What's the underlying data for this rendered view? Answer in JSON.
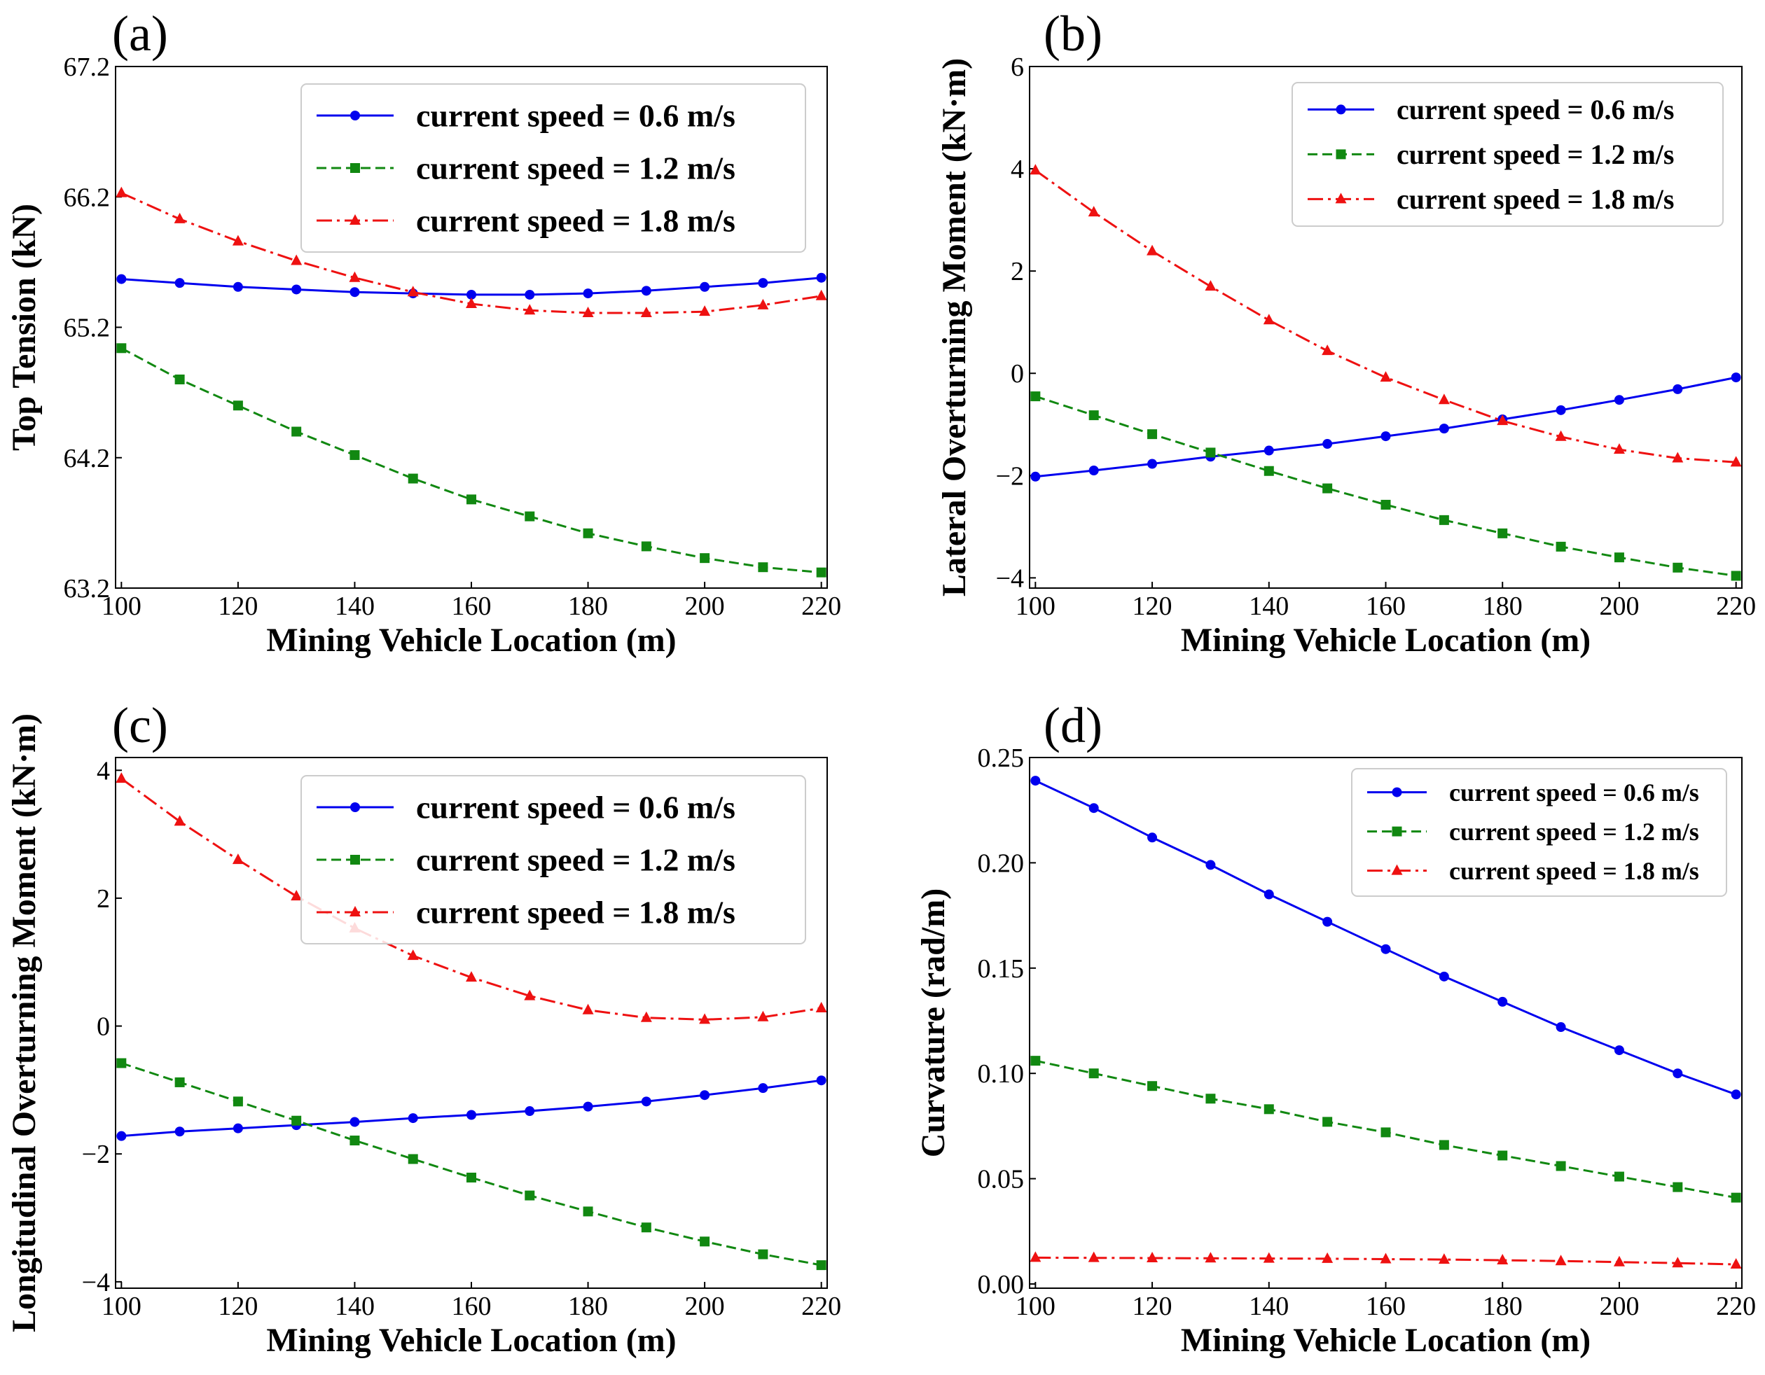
{
  "chart_data": [
    {
      "panel": "(a)",
      "type": "line",
      "title": "",
      "xlabel": "Mining Vehicle Location (m)",
      "ylabel": "Top Tension (kN)",
      "xlim": [
        99,
        221
      ],
      "ylim": [
        63.2,
        67.2
      ],
      "xticks": [
        "100",
        "120",
        "140",
        "160",
        "180",
        "200",
        "220"
      ],
      "xtick_values": [
        100,
        120,
        140,
        160,
        180,
        200,
        220
      ],
      "yticks": [
        "63.2",
        "64.2",
        "65.2",
        "66.2",
        "67.2"
      ],
      "ytick_values": [
        63.2,
        64.2,
        65.2,
        66.2,
        67.2
      ],
      "x": [
        100,
        110,
        120,
        130,
        140,
        150,
        160,
        170,
        180,
        190,
        200,
        210,
        220
      ],
      "legend_position": "upper-right",
      "series": [
        {
          "name": "current speed = 0.6 m/s",
          "color": "#0000ee",
          "style": "solid",
          "marker": "circle",
          "values": [
            65.57,
            65.54,
            65.51,
            65.49,
            65.47,
            65.46,
            65.45,
            65.45,
            65.46,
            65.48,
            65.51,
            65.54,
            65.58
          ]
        },
        {
          "name": "current speed = 1.2 m/s",
          "color": "#118811",
          "style": "dashed",
          "marker": "square",
          "values": [
            65.04,
            64.8,
            64.6,
            64.4,
            64.22,
            64.04,
            63.88,
            63.75,
            63.62,
            63.52,
            63.43,
            63.36,
            63.32
          ]
        },
        {
          "name": "current speed = 1.8 m/s",
          "color": "#ee1111",
          "style": "dashdot",
          "marker": "triangle",
          "values": [
            66.23,
            66.03,
            65.86,
            65.71,
            65.58,
            65.47,
            65.38,
            65.33,
            65.31,
            65.31,
            65.32,
            65.37,
            65.44
          ]
        }
      ]
    },
    {
      "panel": "(b)",
      "type": "line",
      "title": "",
      "xlabel": "Mining Vehicle Location (m)",
      "ylabel": "Lateral Overturning Moment (kN·m)",
      "xlim": [
        99,
        221
      ],
      "ylim": [
        -4.2,
        6
      ],
      "xticks": [
        "100",
        "120",
        "140",
        "160",
        "180",
        "200",
        "220"
      ],
      "xtick_values": [
        100,
        120,
        140,
        160,
        180,
        200,
        220
      ],
      "yticks": [
        "−4",
        "−2",
        "0",
        "2",
        "4",
        "6"
      ],
      "ytick_values": [
        -4,
        -2,
        0,
        2,
        4,
        6
      ],
      "x": [
        100,
        110,
        120,
        130,
        140,
        150,
        160,
        170,
        180,
        190,
        200,
        210,
        220
      ],
      "legend_position": "upper-right",
      "series": [
        {
          "name": "current speed = 0.6 m/s",
          "color": "#0000ee",
          "style": "solid",
          "marker": "circle",
          "values": [
            -2.02,
            -1.9,
            -1.77,
            -1.63,
            -1.51,
            -1.38,
            -1.23,
            -1.08,
            -0.9,
            -0.72,
            -0.52,
            -0.31,
            -0.08
          ]
        },
        {
          "name": "current speed = 1.2 m/s",
          "color": "#118811",
          "style": "dashed",
          "marker": "square",
          "values": [
            -0.45,
            -0.82,
            -1.19,
            -1.55,
            -1.91,
            -2.25,
            -2.57,
            -2.87,
            -3.13,
            -3.39,
            -3.6,
            -3.8,
            -3.96
          ]
        },
        {
          "name": "current speed = 1.8 m/s",
          "color": "#ee1111",
          "style": "dashdot",
          "marker": "triangle",
          "values": [
            3.97,
            3.15,
            2.39,
            1.7,
            1.04,
            0.44,
            -0.08,
            -0.52,
            -0.93,
            -1.24,
            -1.49,
            -1.66,
            -1.74
          ]
        }
      ]
    },
    {
      "panel": "(c)",
      "type": "line",
      "title": "",
      "xlabel": "Mining Vehicle Location (m)",
      "ylabel": "Longitudinal Overturning Moment (kN·m)",
      "xlim": [
        99,
        221
      ],
      "ylim": [
        -4.1,
        4.2
      ],
      "xticks": [
        "100",
        "120",
        "140",
        "160",
        "180",
        "200",
        "220"
      ],
      "xtick_values": [
        100,
        120,
        140,
        160,
        180,
        200,
        220
      ],
      "yticks": [
        "−4",
        "−2",
        "0",
        "2",
        "4"
      ],
      "ytick_values": [
        -4,
        -2,
        0,
        2,
        4
      ],
      "x": [
        100,
        110,
        120,
        130,
        140,
        150,
        160,
        170,
        180,
        190,
        200,
        210,
        220
      ],
      "legend_position": "upper-right",
      "series": [
        {
          "name": "current speed = 0.6 m/s",
          "color": "#0000ee",
          "style": "solid",
          "marker": "circle",
          "values": [
            -1.72,
            -1.65,
            -1.6,
            -1.55,
            -1.5,
            -1.44,
            -1.39,
            -1.33,
            -1.26,
            -1.18,
            -1.08,
            -0.97,
            -0.85
          ]
        },
        {
          "name": "current speed = 1.2 m/s",
          "color": "#118811",
          "style": "dashed",
          "marker": "square",
          "values": [
            -0.58,
            -0.88,
            -1.18,
            -1.48,
            -1.79,
            -2.08,
            -2.37,
            -2.65,
            -2.9,
            -3.15,
            -3.37,
            -3.57,
            -3.74
          ]
        },
        {
          "name": "current speed = 1.8 m/s",
          "color": "#ee1111",
          "style": "dashdot",
          "marker": "triangle",
          "values": [
            3.87,
            3.2,
            2.6,
            2.03,
            1.53,
            1.1,
            0.76,
            0.47,
            0.25,
            0.13,
            0.1,
            0.14,
            0.28
          ]
        }
      ]
    },
    {
      "panel": "(d)",
      "type": "line",
      "title": "",
      "xlabel": "Mining Vehicle Location (m)",
      "ylabel": "Curvature (rad/m)",
      "xlim": [
        99,
        221
      ],
      "ylim": [
        -0.002,
        0.25
      ],
      "xticks": [
        "100",
        "120",
        "140",
        "160",
        "180",
        "200",
        "220"
      ],
      "xtick_values": [
        100,
        120,
        140,
        160,
        180,
        200,
        220
      ],
      "yticks": [
        "0.00",
        "0.05",
        "0.10",
        "0.15",
        "0.20",
        "0.25"
      ],
      "ytick_values": [
        0,
        0.05,
        0.1,
        0.15,
        0.2,
        0.25
      ],
      "x": [
        100,
        110,
        120,
        130,
        140,
        150,
        160,
        170,
        180,
        190,
        200,
        210,
        220
      ],
      "legend_position": "upper-right",
      "series": [
        {
          "name": "current speed = 0.6 m/s",
          "color": "#0000ee",
          "style": "solid",
          "marker": "circle",
          "values": [
            0.239,
            0.226,
            0.212,
            0.199,
            0.185,
            0.172,
            0.159,
            0.146,
            0.134,
            0.122,
            0.111,
            0.1,
            0.09
          ]
        },
        {
          "name": "current speed = 1.2 m/s",
          "color": "#118811",
          "style": "dashed",
          "marker": "square",
          "values": [
            0.106,
            0.1,
            0.094,
            0.088,
            0.083,
            0.077,
            0.072,
            0.066,
            0.061,
            0.056,
            0.051,
            0.046,
            0.041
          ]
        },
        {
          "name": "current speed = 1.8 m/s",
          "color": "#ee1111",
          "style": "dashdot",
          "marker": "triangle",
          "values": [
            0.0125,
            0.0124,
            0.0123,
            0.0122,
            0.0121,
            0.012,
            0.0118,
            0.0116,
            0.0113,
            0.0109,
            0.0104,
            0.0099,
            0.0093
          ]
        }
      ]
    }
  ]
}
